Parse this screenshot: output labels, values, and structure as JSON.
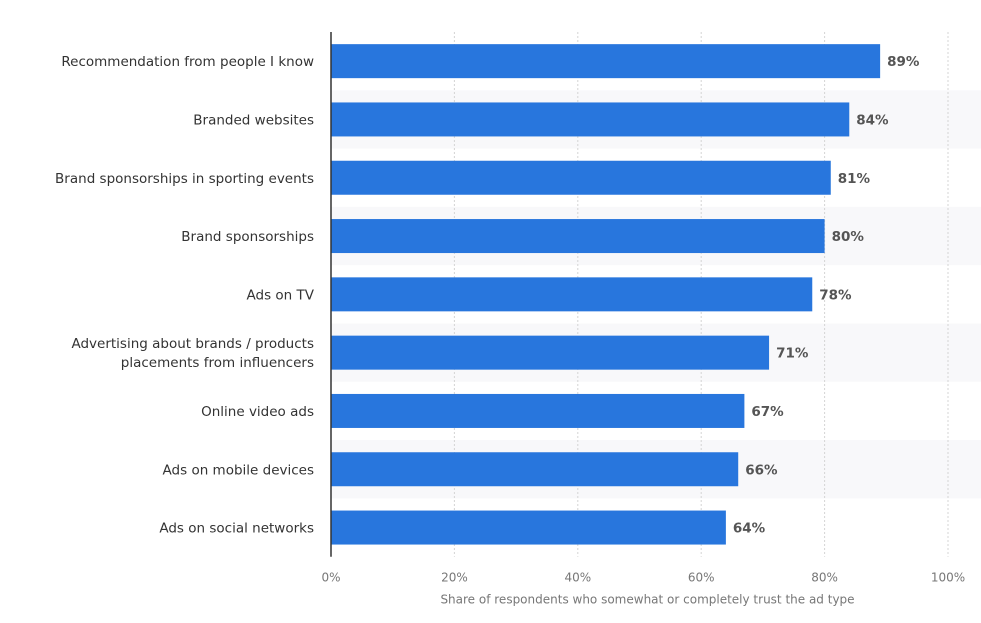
{
  "chart_data": {
    "type": "bar",
    "orientation": "horizontal",
    "categories": [
      [
        "Recommendation from people I know"
      ],
      [
        "Branded websites"
      ],
      [
        "Brand sponsorships in sporting events"
      ],
      [
        "Brand sponsorships"
      ],
      [
        "Ads on TV"
      ],
      [
        "Advertising about brands / products",
        "placements from influencers"
      ],
      [
        "Online video ads"
      ],
      [
        "Ads on mobile devices"
      ],
      [
        "Ads on social networks"
      ]
    ],
    "values": [
      89,
      84,
      81,
      80,
      78,
      71,
      67,
      66,
      64
    ],
    "value_labels": [
      "89%",
      "84%",
      "81%",
      "80%",
      "78%",
      "71%",
      "67%",
      "66%",
      "64%"
    ],
    "xlabel": "Share of respondents who somewhat or completely trust the ad type",
    "xlim": [
      0,
      100
    ],
    "xticks": [
      0,
      20,
      40,
      60,
      80,
      100
    ],
    "xtick_labels": [
      "0%",
      "20%",
      "40%",
      "60%",
      "80%",
      "100%"
    ],
    "grid": true,
    "colors": {
      "bar": "#2876dd",
      "band": "#f8f8fa"
    }
  }
}
